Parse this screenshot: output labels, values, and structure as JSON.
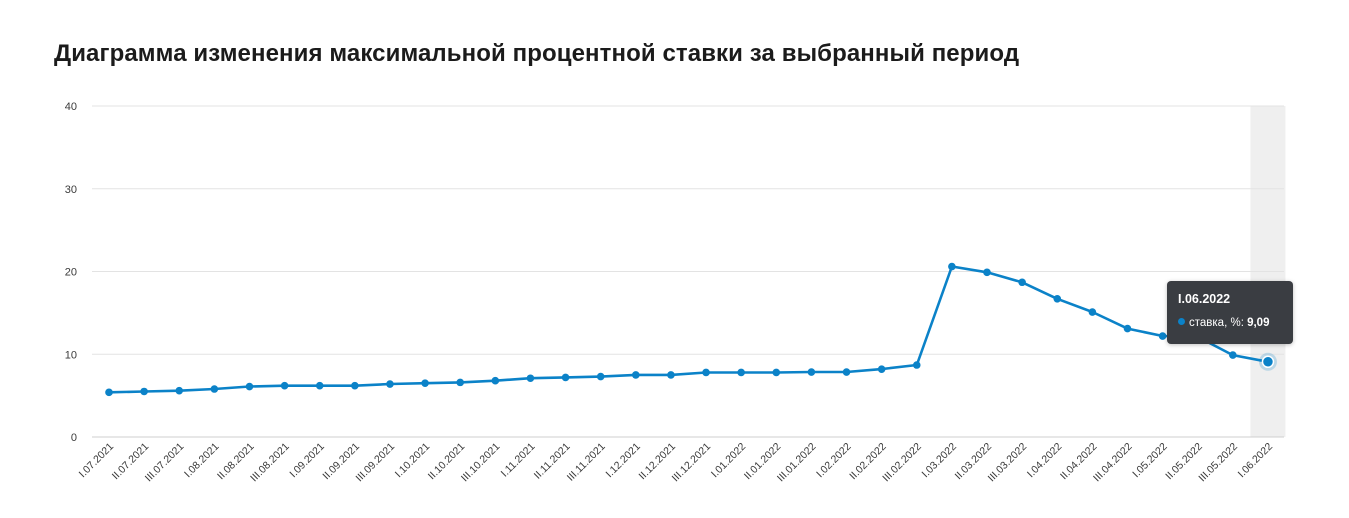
{
  "title": "Диаграмма изменения максимальной процентной ставки за выбранный период",
  "colors": {
    "line": "#0b82c8",
    "grid": "#e3e3e3",
    "highlight": "#efefef",
    "tooltip_bg": "#3a3d42"
  },
  "tooltip": {
    "title": "I.06.2022",
    "series_label": "ставка, %:",
    "value": "9,09"
  },
  "chart_data": {
    "type": "line",
    "title": "Диаграмма изменения максимальной процентной ставки за выбранный период",
    "xlabel": "",
    "ylabel": "",
    "ylim": [
      0,
      40
    ],
    "yticks": [
      0,
      10,
      20,
      30,
      40
    ],
    "grid": true,
    "highlighted_category": "I.06.2022",
    "categories": [
      "I.07.2021",
      "II.07.2021",
      "III.07.2021",
      "I.08.2021",
      "II.08.2021",
      "III.08.2021",
      "I.09.2021",
      "II.09.2021",
      "III.09.2021",
      "I.10.2021",
      "II.10.2021",
      "III.10.2021",
      "I.11.2021",
      "II.11.2021",
      "III.11.2021",
      "I.12.2021",
      "II.12.2021",
      "III.12.2021",
      "I.01.2022",
      "II.01.2022",
      "III.01.2022",
      "I.02.2022",
      "II.02.2022",
      "III.02.2022",
      "I.03.2022",
      "II.03.2022",
      "III.03.2022",
      "I.04.2022",
      "II.04.2022",
      "III.04.2022",
      "I.05.2022",
      "II.05.2022",
      "III.05.2022",
      "I.06.2022"
    ],
    "series": [
      {
        "name": "ставка, %",
        "values": [
          5.4,
          5.5,
          5.6,
          5.8,
          6.1,
          6.2,
          6.2,
          6.2,
          6.4,
          6.5,
          6.6,
          6.8,
          7.1,
          7.2,
          7.3,
          7.5,
          7.5,
          7.8,
          7.8,
          7.8,
          7.85,
          7.85,
          8.2,
          8.7,
          20.6,
          19.9,
          18.7,
          16.7,
          15.1,
          13.1,
          12.2,
          12.1,
          9.9,
          9.09
        ]
      }
    ]
  }
}
